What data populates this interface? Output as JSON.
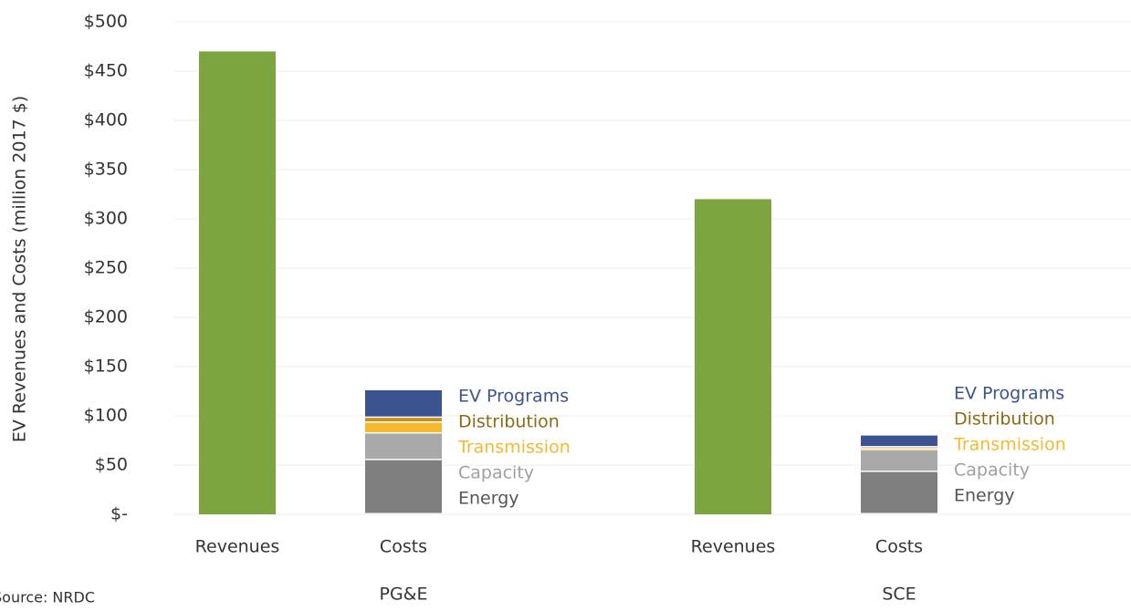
{
  "chart_data": {
    "type": "grouped-stacked-bar",
    "y_label": "EV Revenues and Costs (million 2017 $)",
    "source": "Source: NRDC",
    "groups": [
      "PG&E",
      "SCE"
    ],
    "categories": [
      "Revenues",
      "Costs"
    ],
    "revenues": {
      "color": "#7da53f",
      "values": [
        470,
        320
      ]
    },
    "cost_series": [
      {
        "name": "Energy",
        "color": "#7f7f7f",
        "label_color": "#555555",
        "values": [
          55,
          43
        ]
      },
      {
        "name": "Capacity",
        "color": "#a9a9a9",
        "label_color": "#a0a0a0",
        "values": [
          27,
          22
        ]
      },
      {
        "name": "Transmission",
        "color": "#f5b82e",
        "label_color": "#f5b82e",
        "values": [
          11,
          1
        ]
      },
      {
        "name": "Distribution",
        "color": "#c8901e",
        "label_color": "#8a6a14",
        "values": [
          5,
          2
        ]
      },
      {
        "name": "EV Programs",
        "color": "#3b5391",
        "label_color": "#3b5391",
        "values": [
          28,
          12
        ]
      }
    ],
    "ylim": [
      0,
      500
    ],
    "yticks": [
      {
        "value": 0,
        "label": "$-"
      },
      {
        "value": 50,
        "label": "$50"
      },
      {
        "value": 100,
        "label": "$100"
      },
      {
        "value": 150,
        "label": "$150"
      },
      {
        "value": 200,
        "label": "$200"
      },
      {
        "value": 250,
        "label": "$250"
      },
      {
        "value": 300,
        "label": "$300"
      },
      {
        "value": 350,
        "label": "$350"
      },
      {
        "value": 400,
        "label": "$400"
      },
      {
        "value": 450,
        "label": "$450"
      },
      {
        "value": 500,
        "label": "$500"
      }
    ],
    "grid": true
  }
}
